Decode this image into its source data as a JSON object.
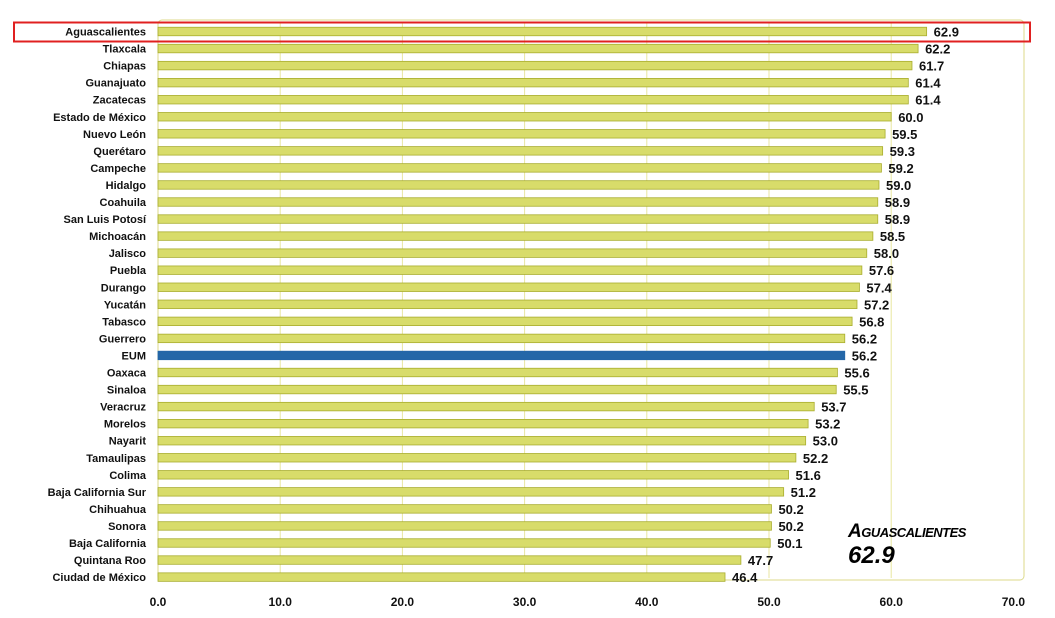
{
  "colors": {
    "bar": "#d8dc6a",
    "bar_edge": "#a9ad2e",
    "highlight_bar": "#2467a8",
    "highlight_box": "#e02020",
    "gridline": "#e8e6a0"
  },
  "chart_data": {
    "type": "bar",
    "orientation": "horizontal",
    "xlim": [
      0,
      70
    ],
    "xticks": [
      "0.0",
      "10.0",
      "20.0",
      "30.0",
      "40.0",
      "50.0",
      "60.0",
      "70.0"
    ],
    "categories": [
      "Aguascalientes",
      "Tlaxcala",
      "Chiapas",
      "Guanajuato",
      "Zacatecas",
      "Estado de México",
      "Nuevo León",
      "Querétaro",
      "Campeche",
      "Hidalgo",
      "Coahuila",
      "San Luis Potosí",
      "Michoacán",
      "Jalisco",
      "Puebla",
      "Durango",
      "Yucatán",
      "Tabasco",
      "Guerrero",
      "EUM",
      "Oaxaca",
      "Sinaloa",
      "Veracruz",
      "Morelos",
      "Nayarit",
      "Tamaulipas",
      "Colima",
      "Baja California Sur",
      "Chihuahua",
      "Sonora",
      "Baja California",
      "Quintana Roo",
      "Ciudad de México"
    ],
    "values": [
      62.9,
      62.2,
      61.7,
      61.4,
      61.4,
      60.0,
      59.5,
      59.3,
      59.2,
      59.0,
      58.9,
      58.9,
      58.5,
      58.0,
      57.6,
      57.4,
      57.2,
      56.8,
      56.2,
      56.2,
      55.6,
      55.5,
      53.7,
      53.2,
      53.0,
      52.2,
      51.6,
      51.2,
      50.2,
      50.2,
      50.1,
      47.7,
      46.4
    ],
    "value_labels": [
      "62.9",
      "62.2",
      "61.7",
      "61.4",
      "61.4",
      "60.0",
      "59.5",
      "59.3",
      "59.2",
      "59.0",
      "58.9",
      "58.9",
      "58.5",
      "58.0",
      "57.6",
      "57.4",
      "57.2",
      "56.8",
      "56.2",
      "56.2",
      "55.6",
      "55.5",
      "53.7",
      "53.2",
      "53.0",
      "52.2",
      "51.6",
      "51.2",
      "50.2",
      "50.2",
      "50.1",
      "47.7",
      "46.4"
    ],
    "highlight_category": "EUM",
    "boxed_category": "Aguascalientes",
    "grid": true
  },
  "callout": {
    "name": "Aguascalientes",
    "value": "62.9"
  }
}
